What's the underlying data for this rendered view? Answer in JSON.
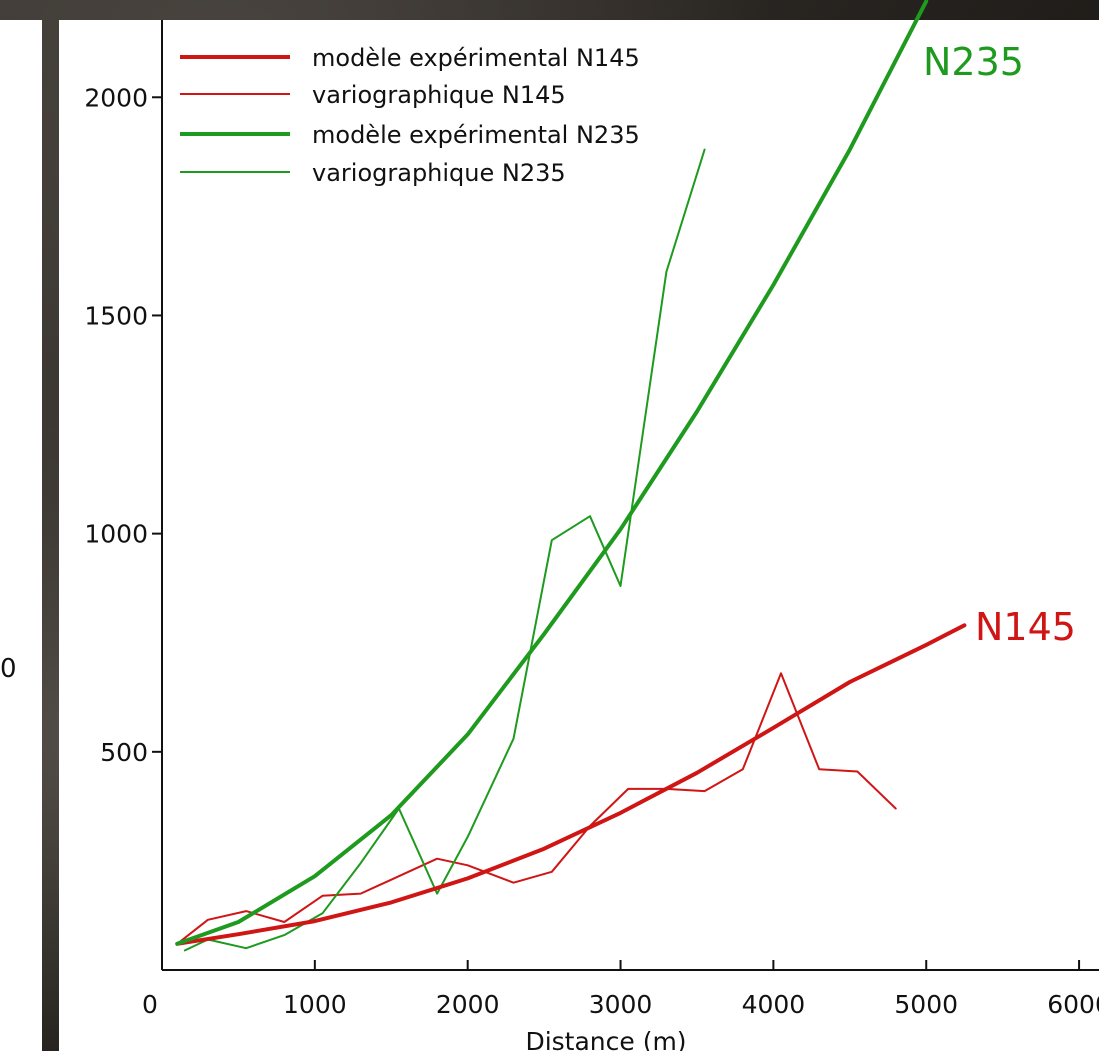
{
  "chart_data": {
    "type": "line",
    "title": "",
    "xlabel": "Distance (m)",
    "ylabel": "",
    "xlim": [
      0,
      6150
    ],
    "ylim": [
      0,
      2200
    ],
    "x_ticks": [
      0,
      1000,
      2000,
      3000,
      4000,
      5000,
      6000
    ],
    "y_ticks": [
      500,
      1000,
      1500,
      2000
    ],
    "legend_position": "top-left",
    "series": [
      {
        "name": "modèle expérimental N145",
        "color": "#d01515",
        "style": "thick",
        "x": [
          100,
          500,
          1000,
          1500,
          2000,
          2500,
          3000,
          3500,
          4000,
          4500,
          5000,
          5250
        ],
        "y": [
          60,
          82,
          112,
          155,
          210,
          278,
          360,
          452,
          555,
          660,
          745,
          790
        ]
      },
      {
        "name": "variographique N145",
        "color": "#d01515",
        "style": "thin",
        "x": [
          100,
          300,
          550,
          800,
          1050,
          1300,
          1550,
          1800,
          2000,
          2300,
          2550,
          2800,
          3050,
          3300,
          3550,
          3800,
          4050,
          4300,
          4550,
          4800
        ],
        "y": [
          60,
          115,
          135,
          110,
          170,
          175,
          215,
          255,
          240,
          200,
          225,
          330,
          415,
          415,
          410,
          460,
          680,
          460,
          455,
          370
        ]
      },
      {
        "name": "modèle expérimental N235",
        "color": "#1e9a1e",
        "style": "thick",
        "x": [
          100,
          500,
          1000,
          1500,
          2000,
          2500,
          3000,
          3500,
          4000,
          4500,
          5000
        ],
        "y": [
          60,
          110,
          215,
          355,
          540,
          770,
          1010,
          1280,
          1570,
          1880,
          2220
        ]
      },
      {
        "name": "variographique N235",
        "color": "#1e9a1e",
        "style": "thin",
        "x": [
          150,
          300,
          550,
          800,
          1050,
          1300,
          1550,
          1800,
          2000,
          2300,
          2550,
          2800,
          3000,
          3300,
          3550
        ],
        "y": [
          45,
          70,
          50,
          80,
          130,
          245,
          370,
          175,
          305,
          530,
          985,
          1040,
          880,
          1600,
          1880
        ]
      }
    ],
    "annotations": [
      {
        "text": "N235",
        "color": "#1e9a1e"
      },
      {
        "text": "N145",
        "color": "#d01515"
      }
    ]
  },
  "side_fragment": {
    "text": "0"
  }
}
